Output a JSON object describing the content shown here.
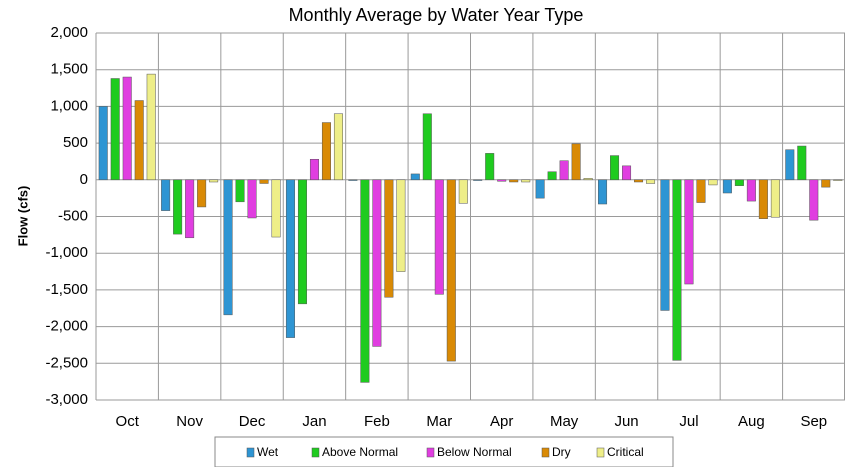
{
  "chart_data": {
    "type": "bar",
    "title": "Monthly Average by Water Year Type",
    "y_label": "Flow (cfs)",
    "categories": [
      "Oct",
      "Nov",
      "Dec",
      "Jan",
      "Feb",
      "Mar",
      "Apr",
      "May",
      "Jun",
      "Jul",
      "Aug",
      "Sep"
    ],
    "series": [
      {
        "name": "Wet",
        "color": "#2e95d3",
        "values": [
          1000,
          -420,
          -1840,
          -2150,
          -10,
          80,
          -10,
          -250,
          -330,
          -1780,
          -180,
          410
        ]
      },
      {
        "name": "Above Normal",
        "color": "#1fcb1f",
        "values": [
          1380,
          -740,
          -300,
          -1690,
          -2760,
          900,
          360,
          110,
          330,
          -2460,
          -80,
          460
        ]
      },
      {
        "name": "Below Normal",
        "color": "#e03ee0",
        "values": [
          1400,
          -790,
          -520,
          280,
          -2270,
          -1560,
          -20,
          260,
          190,
          -1420,
          -290,
          -550
        ]
      },
      {
        "name": "Dry",
        "color": "#d98a05",
        "values": [
          1080,
          -370,
          -50,
          780,
          -1600,
          -2470,
          -30,
          490,
          -30,
          -310,
          -530,
          -100
        ]
      },
      {
        "name": "Critical",
        "color": "#eeee88",
        "values": [
          1440,
          -30,
          -780,
          900,
          -1250,
          -320,
          -30,
          20,
          -50,
          -70,
          -510,
          -10
        ]
      }
    ],
    "ylim": [
      -3000,
      2000
    ],
    "yticks": [
      {
        "value": 2000,
        "label": "2,000"
      },
      {
        "value": 1500,
        "label": "1,500"
      },
      {
        "value": 1000,
        "label": "1,000"
      },
      500,
      0,
      -500,
      {
        "value": -1000,
        "label": "-1,000"
      },
      {
        "value": -1500,
        "label": "-1,500"
      },
      {
        "value": -2000,
        "label": "-2,000"
      },
      {
        "value": -2500,
        "label": "-2,500"
      },
      {
        "value": -3000,
        "label": "-3,000"
      }
    ],
    "grid": true
  }
}
